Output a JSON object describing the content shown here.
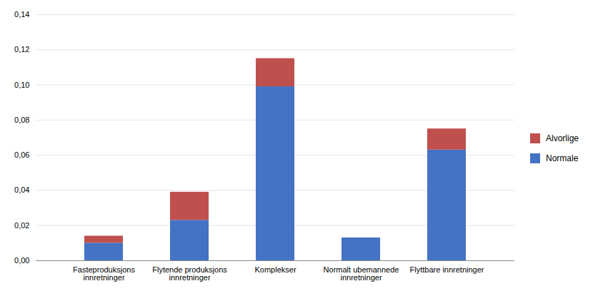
{
  "chart_data": {
    "type": "bar",
    "stacked": true,
    "categories": [
      "Fasteproduksjons\ninnretninger",
      "Flytende produksjons\ninnretninger",
      "Komplekser",
      "Normalt ubemannede\ninnretninger",
      "Flyttbare innretninger"
    ],
    "series": [
      {
        "name": "Normale",
        "color": "#4472C4",
        "values": [
          0.01,
          0.023,
          0.099,
          0.013,
          0.063
        ]
      },
      {
        "name": "Alvorlige",
        "color": "#C0504D",
        "values": [
          0.004,
          0.016,
          0.016,
          0.0,
          0.012
        ]
      }
    ],
    "ylim": [
      0,
      0.14
    ],
    "yticks": [
      {
        "value": 0.0,
        "label": "0,00"
      },
      {
        "value": 0.02,
        "label": "0,02"
      },
      {
        "value": 0.04,
        "label": "0,04"
      },
      {
        "value": 0.06,
        "label": "0,06"
      },
      {
        "value": 0.08,
        "label": "0,08"
      },
      {
        "value": 0.1,
        "label": "0,10"
      },
      {
        "value": 0.12,
        "label": "0,12"
      },
      {
        "value": 0.14,
        "label": "0,14"
      }
    ],
    "grid": true,
    "legend": "right"
  }
}
